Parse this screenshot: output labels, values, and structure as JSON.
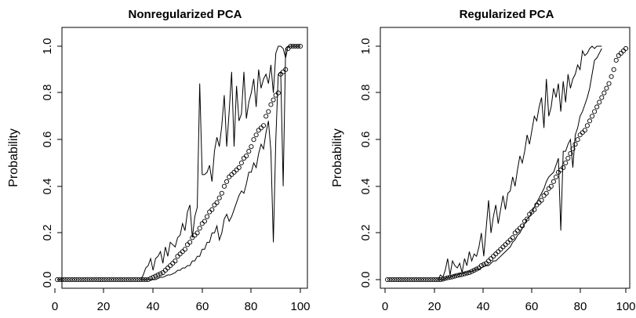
{
  "chart_data": [
    {
      "type": "scatter",
      "title": "Nonregularized PCA",
      "xlabel": "",
      "ylabel": "Probability",
      "xlim": [
        0,
        100
      ],
      "ylim": [
        0,
        1
      ],
      "xticks": [
        "0",
        "20",
        "40",
        "60",
        "80",
        "100"
      ],
      "yticks": [
        "0.0",
        "0.2",
        "0.4",
        "0.6",
        "0.8",
        "1.0"
      ],
      "grid": false,
      "series": [
        {
          "role": "points",
          "x_start": 1,
          "x_step": 1,
          "values": [
            0,
            0,
            0,
            0,
            0,
            0,
            0,
            0,
            0,
            0,
            0,
            0,
            0,
            0,
            0,
            0,
            0,
            0,
            0,
            0,
            0,
            0,
            0,
            0,
            0,
            0,
            0,
            0,
            0,
            0,
            0,
            0,
            0,
            0,
            0,
            0,
            0,
            0,
            0.005,
            0.01,
            0.015,
            0.02,
            0.025,
            0.03,
            0.04,
            0.05,
            0.06,
            0.07,
            0.08,
            0.1,
            0.11,
            0.12,
            0.13,
            0.15,
            0.16,
            0.18,
            0.19,
            0.2,
            0.22,
            0.24,
            0.25,
            0.27,
            0.29,
            0.3,
            0.32,
            0.33,
            0.35,
            0.37,
            0.4,
            0.42,
            0.44,
            0.45,
            0.46,
            0.47,
            0.48,
            0.5,
            0.52,
            0.53,
            0.55,
            0.57,
            0.6,
            0.62,
            0.64,
            0.65,
            0.66,
            0.7,
            0.72,
            0.75,
            0.77,
            0.79,
            0.8,
            0.88,
            0.89,
            0.9,
            0.99,
            1,
            1,
            1,
            1,
            1
          ]
        },
        {
          "role": "upper",
          "x_start": 35,
          "x_step": 1,
          "values": [
            0,
            0.02,
            0.05,
            0.06,
            0.09,
            0.04,
            0.09,
            0.1,
            0.12,
            0.07,
            0.14,
            0.1,
            0.16,
            0.15,
            0.14,
            0.18,
            0.19,
            0.24,
            0.21,
            0.29,
            0.32,
            0.18,
            0.27,
            0.31,
            0.84,
            0.45,
            0.45,
            0.46,
            0.49,
            0.42,
            0.55,
            0.61,
            0.57,
            0.66,
            0.79,
            0.57,
            0.72,
            0.89,
            0.57,
            0.83,
            0.68,
            0.71,
            0.89,
            0.69,
            0.76,
            0.8,
            0.86,
            0.74,
            0.9,
            0.82,
            0.86,
            0.88,
            0.84,
            0.92,
            0.8,
            0.97,
            1,
            1,
            0.99,
            0.95,
            1,
            1,
            1,
            1,
            1,
            1
          ]
        },
        {
          "role": "lower",
          "x_start": 35,
          "x_step": 1,
          "values": [
            0,
            0,
            0,
            0,
            0,
            0,
            0,
            0.005,
            0.01,
            0.01,
            0.015,
            0.02,
            0.02,
            0.025,
            0.03,
            0.04,
            0.04,
            0.05,
            0.05,
            0.06,
            0.06,
            0.08,
            0.08,
            0.1,
            0.1,
            0.13,
            0.13,
            0.16,
            0.16,
            0.2,
            0.2,
            0.23,
            0.17,
            0.2,
            0.26,
            0.28,
            0.25,
            0.27,
            0.3,
            0.33,
            0.36,
            0.38,
            0.37,
            0.41,
            0.46,
            0.46,
            0.5,
            0.48,
            0.54,
            0.58,
            0.56,
            0.63,
            0.68,
            0.55,
            0.16,
            0.6,
            0.88,
            0.89,
            0.4,
            0.99,
            1,
            1,
            1,
            1,
            1,
            1
          ]
        }
      ]
    },
    {
      "type": "scatter",
      "title": "Regularized PCA",
      "xlabel": "",
      "ylabel": "Probability",
      "xlim": [
        0,
        100
      ],
      "ylim": [
        0,
        1
      ],
      "xticks": [
        "0",
        "20",
        "40",
        "60",
        "80",
        "100"
      ],
      "yticks": [
        "0.0",
        "0.2",
        "0.4",
        "0.6",
        "0.8",
        "1.0"
      ],
      "grid": false,
      "series": [
        {
          "role": "points",
          "x_start": 1,
          "x_step": 1,
          "values": [
            0,
            0,
            0,
            0,
            0,
            0,
            0,
            0,
            0,
            0,
            0,
            0,
            0,
            0,
            0,
            0,
            0,
            0,
            0,
            0,
            0,
            0,
            0,
            0.002,
            0.005,
            0.008,
            0.01,
            0.012,
            0.015,
            0.018,
            0.02,
            0.022,
            0.025,
            0.028,
            0.03,
            0.035,
            0.04,
            0.045,
            0.05,
            0.06,
            0.065,
            0.07,
            0.08,
            0.09,
            0.1,
            0.11,
            0.12,
            0.13,
            0.14,
            0.15,
            0.16,
            0.17,
            0.18,
            0.2,
            0.21,
            0.22,
            0.23,
            0.25,
            0.26,
            0.28,
            0.29,
            0.3,
            0.32,
            0.33,
            0.34,
            0.36,
            0.37,
            0.39,
            0.4,
            0.42,
            0.44,
            0.46,
            0.47,
            0.48,
            0.5,
            0.52,
            0.54,
            0.56,
            0.58,
            0.6,
            0.62,
            0.63,
            0.64,
            0.66,
            0.68,
            0.7,
            0.72,
            0.74,
            0.76,
            0.78,
            0.8,
            0.82,
            0.84,
            0.87,
            0.9,
            0.94,
            0.96,
            0.97,
            0.98,
            0.99
          ]
        },
        {
          "role": "upper",
          "x_start": 22,
          "x_step": 1,
          "values": [
            0,
            0.02,
            0.01,
            0.04,
            0.09,
            0.02,
            0.08,
            0.06,
            0.05,
            0.07,
            0.03,
            0.09,
            0.06,
            0.12,
            0.08,
            0.11,
            0.1,
            0.14,
            0.2,
            0.1,
            0.22,
            0.34,
            0.2,
            0.27,
            0.32,
            0.24,
            0.3,
            0.36,
            0.3,
            0.37,
            0.38,
            0.44,
            0.4,
            0.47,
            0.53,
            0.5,
            0.55,
            0.62,
            0.58,
            0.64,
            0.7,
            0.68,
            0.74,
            0.78,
            0.65,
            0.86,
            0.7,
            0.74,
            0.82,
            0.78,
            0.84,
            0.72,
            0.85,
            0.76,
            0.88,
            0.82,
            0.86,
            0.88,
            0.92,
            0.9,
            0.98,
            0.96,
            0.97,
            0.99,
            1,
            0.99,
            1,
            1,
            1
          ]
        },
        {
          "role": "lower",
          "x_start": 22,
          "x_step": 1,
          "values": [
            0,
            0,
            0,
            0.005,
            0.01,
            0.01,
            0.015,
            0.02,
            0.02,
            0.025,
            0.025,
            0.03,
            0.03,
            0.035,
            0.035,
            0.04,
            0.045,
            0.045,
            0.05,
            0.055,
            0.06,
            0.06,
            0.07,
            0.08,
            0.08,
            0.09,
            0.1,
            0.11,
            0.12,
            0.13,
            0.14,
            0.16,
            0.17,
            0.19,
            0.2,
            0.22,
            0.24,
            0.26,
            0.27,
            0.29,
            0.31,
            0.33,
            0.35,
            0.37,
            0.39,
            0.42,
            0.44,
            0.45,
            0.46,
            0.49,
            0.52,
            0.21,
            0.55,
            0.55,
            0.58,
            0.6,
            0.48,
            0.62,
            0.65,
            0.7,
            0.72,
            0.75,
            0.78,
            0.82,
            0.88,
            0.94,
            0.95,
            0.97,
            0.99
          ]
        }
      ]
    }
  ]
}
